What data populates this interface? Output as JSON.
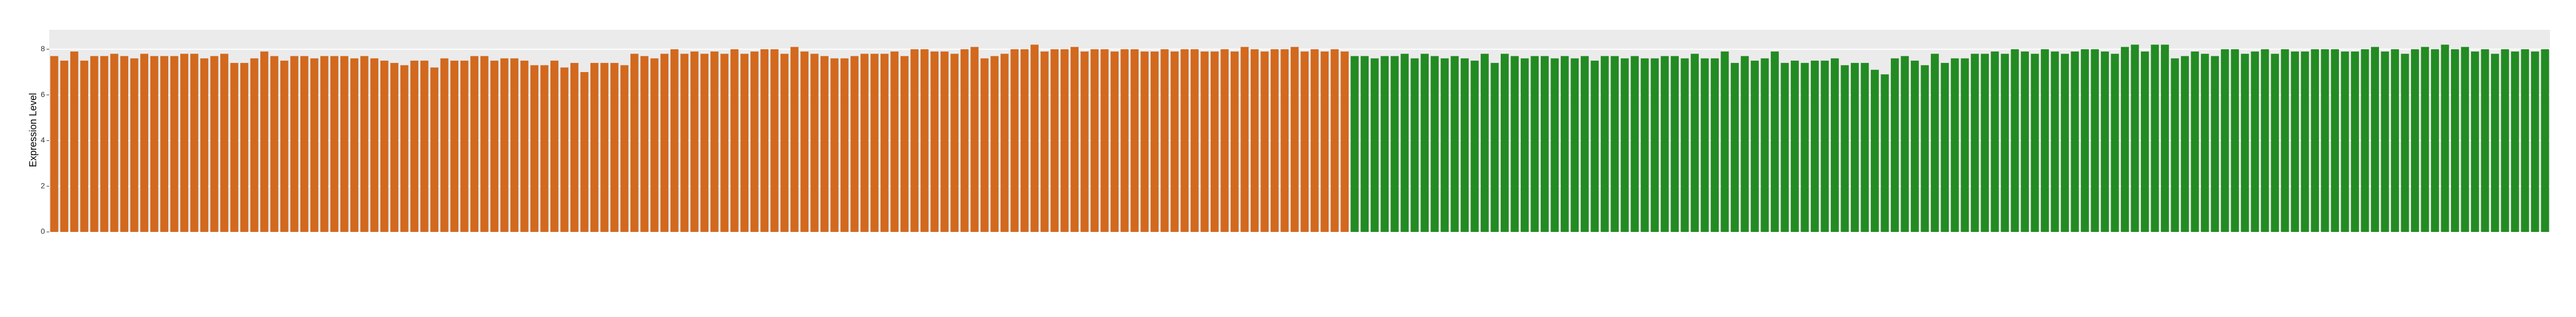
{
  "chart_data": {
    "type": "bar",
    "y_label": "Expression Level",
    "ylim": [
      0,
      8.85
    ],
    "yticks": [
      0,
      2,
      4,
      6,
      8
    ],
    "grid": true,
    "series": [
      {
        "color": "#d2691e",
        "values": [
          7.7,
          7.5,
          7.9,
          7.5,
          7.7,
          7.7,
          7.8,
          7.7,
          7.6,
          7.8,
          7.7,
          7.7,
          7.7,
          7.8,
          7.8,
          7.6,
          7.7,
          7.8,
          7.4,
          7.4,
          7.6,
          7.9,
          7.7,
          7.5,
          7.7,
          7.7,
          7.6,
          7.7,
          7.7,
          7.7,
          7.6,
          7.7,
          7.6,
          7.5,
          7.4,
          7.3,
          7.5,
          7.5,
          7.2,
          7.6,
          7.5,
          7.5,
          7.7,
          7.7,
          7.5,
          7.6,
          7.6,
          7.5,
          7.3,
          7.3,
          7.5,
          7.2,
          7.4,
          7.0,
          7.4,
          7.4,
          7.4,
          7.3,
          7.8,
          7.7,
          7.6,
          7.8,
          8.0,
          7.8,
          7.9,
          7.8,
          7.9,
          7.8,
          8.0,
          7.8,
          7.9,
          8.0,
          8.0,
          7.8,
          8.1,
          7.9,
          7.8,
          7.7,
          7.6,
          7.6,
          7.7,
          7.8,
          7.8,
          7.8,
          7.9,
          7.7,
          8.0,
          8.0,
          7.9,
          7.9,
          7.8,
          8.0,
          8.1,
          7.6,
          7.7,
          7.8,
          8.0,
          8.0,
          8.2,
          7.9,
          8.0,
          8.0,
          8.1,
          7.9,
          8.0,
          8.0,
          7.9,
          8.0,
          8.0,
          7.9,
          7.9,
          8.0,
          7.9,
          8.0,
          8.0,
          7.9,
          7.9,
          8.0,
          7.9,
          8.1,
          8.0,
          7.9,
          8.0,
          8.0,
          8.1,
          7.9,
          8.0,
          7.9,
          8.0,
          7.9
        ]
      },
      {
        "color": "#228b22",
        "values": [
          7.7,
          7.7,
          7.6,
          7.7,
          7.7,
          7.8,
          7.6,
          7.8,
          7.7,
          7.6,
          7.7,
          7.6,
          7.5,
          7.8,
          7.4,
          7.8,
          7.7,
          7.6,
          7.7,
          7.7,
          7.6,
          7.7,
          7.6,
          7.7,
          7.5,
          7.7,
          7.7,
          7.6,
          7.7,
          7.6,
          7.6,
          7.7,
          7.7,
          7.6,
          7.8,
          7.6,
          7.6,
          7.9,
          7.4,
          7.7,
          7.5,
          7.6,
          7.9,
          7.4,
          7.5,
          7.4,
          7.5,
          7.5,
          7.6,
          7.3,
          7.4,
          7.4,
          7.1,
          6.9,
          7.6,
          7.7,
          7.5,
          7.3,
          7.8,
          7.4,
          7.6,
          7.6,
          7.8,
          7.8,
          7.9,
          7.8,
          8.0,
          7.9,
          7.8,
          8.0,
          7.9,
          7.8,
          7.9,
          8.0,
          8.0,
          7.9,
          7.8,
          8.1,
          8.2,
          7.9,
          8.2,
          8.2,
          7.6,
          7.7,
          7.9,
          7.8,
          7.7,
          8.0,
          8.0,
          7.8,
          7.9,
          8.0,
          7.8,
          8.0,
          7.9,
          7.9,
          8.0,
          8.0,
          8.0,
          7.9,
          7.9,
          8.0,
          8.1,
          7.9,
          8.0,
          7.8,
          8.0,
          8.1,
          8.0,
          8.2,
          8.0,
          8.1,
          7.9,
          8.0,
          7.8,
          8.0,
          7.9,
          8.0,
          7.9,
          8.0
        ]
      }
    ]
  }
}
